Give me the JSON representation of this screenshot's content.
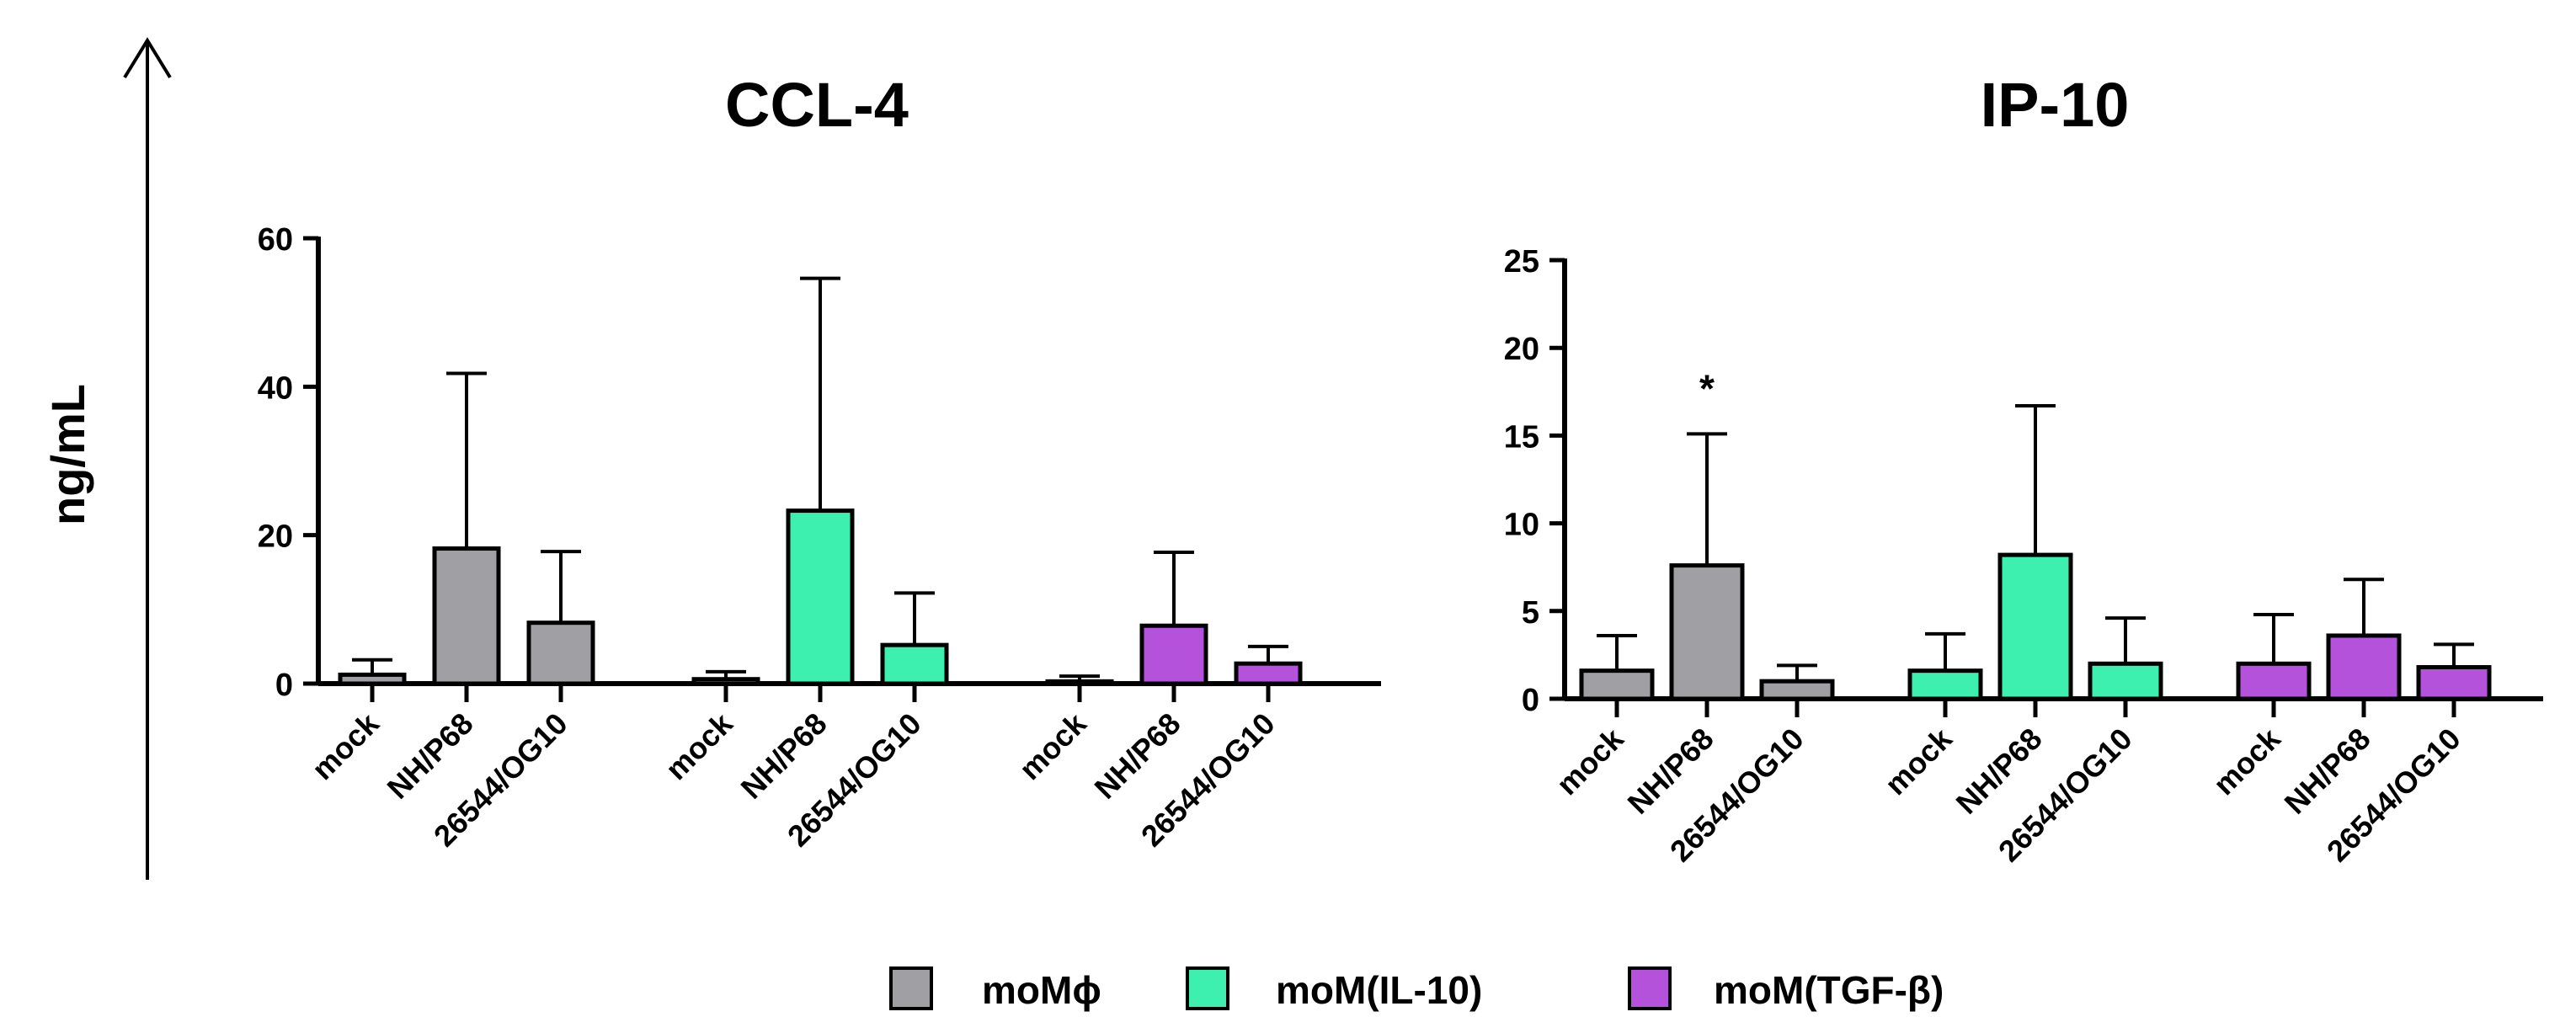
{
  "ylabel": "ng/mL",
  "legend": {
    "placement": "bottom",
    "items": [
      {
        "label": "moMϕ",
        "color": "#a0a0a4"
      },
      {
        "label": "moM(IL-10)",
        "color": "#3ef0b0"
      },
      {
        "label": "moM(TGF-β)",
        "color": "#b452dc"
      }
    ]
  },
  "chart_data": [
    {
      "type": "bar",
      "title": "CCL-4",
      "ylim": [
        0,
        60
      ],
      "yticks": [
        "0",
        "20",
        "40",
        "60"
      ],
      "grid": false,
      "groups": [
        {
          "series": "moMϕ",
          "color": "#a0a0a4",
          "categories": [
            "mock",
            "NH/P68",
            "26544/OG10"
          ],
          "values": [
            1.2,
            18.2,
            8.2
          ],
          "errors": [
            2.0,
            23.6,
            9.6
          ]
        },
        {
          "series": "moM(IL-10)",
          "color": "#3ef0b0",
          "categories": [
            "mock",
            "NH/P68",
            "26544/OG10"
          ],
          "values": [
            0.6,
            23.3,
            5.2
          ],
          "errors": [
            1.0,
            31.3,
            7.0
          ]
        },
        {
          "series": "moM(TGF-β)",
          "color": "#b452dc",
          "categories": [
            "mock",
            "NH/P68",
            "26544/OG10"
          ],
          "values": [
            0.3,
            7.8,
            2.7
          ],
          "errors": [
            0.7,
            9.9,
            2.3
          ]
        }
      ],
      "annotations": []
    },
    {
      "type": "bar",
      "title": "IP-10",
      "ylim": [
        0,
        25
      ],
      "yticks": [
        "0",
        "5",
        "10",
        "15",
        "20",
        "25"
      ],
      "grid": false,
      "groups": [
        {
          "series": "moMϕ",
          "color": "#a0a0a4",
          "categories": [
            "mock",
            "NH/P68",
            "26544/OG10"
          ],
          "values": [
            1.6,
            7.6,
            1.0
          ],
          "errors": [
            2.0,
            7.5,
            0.9
          ]
        },
        {
          "series": "moM(IL-10)",
          "color": "#3ef0b0",
          "categories": [
            "mock",
            "NH/P68",
            "26544/OG10"
          ],
          "values": [
            1.6,
            8.2,
            2.0
          ],
          "errors": [
            2.1,
            8.5,
            2.6
          ]
        },
        {
          "series": "moM(TGF-β)",
          "color": "#b452dc",
          "categories": [
            "mock",
            "NH/P68",
            "26544/OG10"
          ],
          "values": [
            2.0,
            3.6,
            1.8
          ],
          "errors": [
            2.8,
            3.2,
            1.3
          ]
        }
      ],
      "annotations": [
        {
          "group": 0,
          "bar": 1,
          "text": "*"
        }
      ]
    }
  ]
}
